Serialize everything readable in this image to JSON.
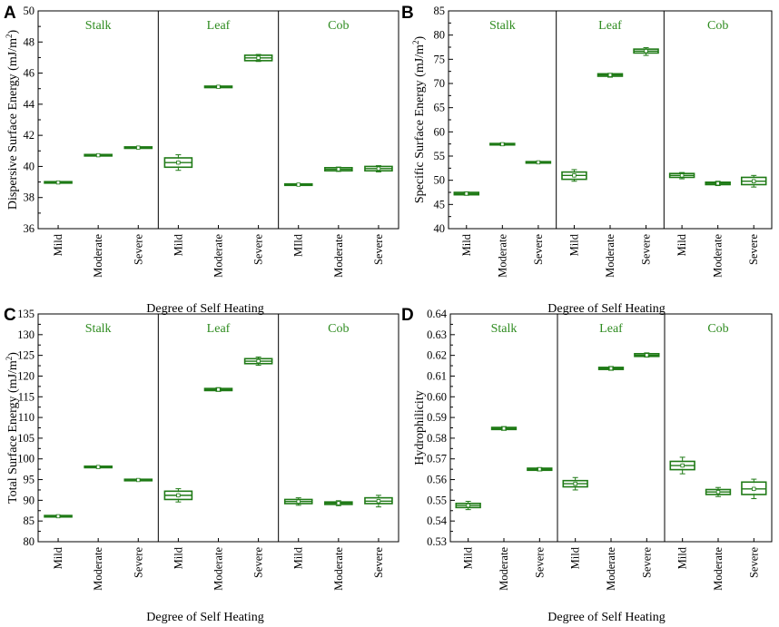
{
  "chart_data": [
    {
      "panel": "A",
      "type": "box",
      "ylabel": "Dispersive Surface Energy (mJ/m2)",
      "xlabel": "Degree of Self Heating",
      "ylim": [
        36,
        50
      ],
      "yticks": [
        36,
        38,
        40,
        42,
        44,
        46,
        48,
        50
      ],
      "groups": [
        "Stalk",
        "Leaf",
        "Cob"
      ],
      "categories": [
        "Mild",
        "Moderate",
        "Severe",
        "Mild",
        "Moderate",
        "Severe",
        "MIld",
        "Moderate",
        "Severe"
      ],
      "boxes": [
        {
          "q1": 38.95,
          "q3": 39.0,
          "mean": 38.97,
          "min": 38.93,
          "max": 39.02
        },
        {
          "q1": 40.7,
          "q3": 40.74,
          "mean": 40.72,
          "min": 40.68,
          "max": 40.76
        },
        {
          "q1": 41.19,
          "q3": 41.23,
          "mean": 41.21,
          "min": 41.17,
          "max": 41.25
        },
        {
          "q1": 39.95,
          "q3": 40.55,
          "mean": 40.25,
          "min": 39.75,
          "max": 40.75
        },
        {
          "q1": 45.08,
          "q3": 45.15,
          "mean": 45.12,
          "min": 45.05,
          "max": 45.18
        },
        {
          "q1": 46.8,
          "q3": 47.15,
          "mean": 46.98,
          "min": 46.75,
          "max": 47.2
        },
        {
          "q1": 38.8,
          "q3": 38.86,
          "mean": 38.83,
          "min": 38.78,
          "max": 38.88
        },
        {
          "q1": 39.72,
          "q3": 39.92,
          "mean": 39.82,
          "min": 39.68,
          "max": 39.96
        },
        {
          "q1": 39.72,
          "q3": 40.0,
          "mean": 39.86,
          "min": 39.65,
          "max": 40.05
        }
      ]
    },
    {
      "panel": "B",
      "type": "box",
      "ylabel": "Specific Surface Energy (mJ/m2)",
      "xlabel": "Degree of Self Heating",
      "ylim": [
        40,
        85
      ],
      "yticks": [
        40,
        45,
        50,
        55,
        60,
        65,
        70,
        75,
        80,
        85
      ],
      "groups": [
        "Stalk",
        "Leaf",
        "Cob"
      ],
      "categories": [
        "Mild",
        "Moderate",
        "Severe",
        "Mild",
        "Moderate",
        "Severe",
        "Mild",
        "Moderate",
        "Severe"
      ],
      "boxes": [
        {
          "q1": 47.0,
          "q3": 47.5,
          "mean": 47.25,
          "min": 46.9,
          "max": 47.6
        },
        {
          "q1": 57.3,
          "q3": 57.6,
          "mean": 57.45,
          "min": 57.2,
          "max": 57.7
        },
        {
          "q1": 53.6,
          "q3": 53.8,
          "mean": 53.7,
          "min": 53.5,
          "max": 53.9
        },
        {
          "q1": 50.2,
          "q3": 51.7,
          "mean": 51.0,
          "min": 49.8,
          "max": 52.2
        },
        {
          "q1": 71.5,
          "q3": 72.0,
          "mean": 71.75,
          "min": 71.3,
          "max": 72.1
        },
        {
          "q1": 76.3,
          "q3": 77.1,
          "mean": 76.7,
          "min": 75.8,
          "max": 77.4
        },
        {
          "q1": 50.6,
          "q3": 51.4,
          "mean": 51.0,
          "min": 50.3,
          "max": 51.6
        },
        {
          "q1": 49.1,
          "q3": 49.6,
          "mean": 49.35,
          "min": 48.9,
          "max": 49.8
        },
        {
          "q1": 49.1,
          "q3": 50.6,
          "mean": 49.8,
          "min": 48.6,
          "max": 51.0
        }
      ]
    },
    {
      "panel": "C",
      "type": "box",
      "ylabel": "Total Surface Energy (mJ/m2)",
      "xlabel": "Degree of Self Heating",
      "ylim": [
        80,
        135
      ],
      "yticks": [
        80,
        85,
        90,
        95,
        100,
        105,
        110,
        115,
        120,
        125,
        130,
        135
      ],
      "groups": [
        "Stalk",
        "Leaf",
        "Cob"
      ],
      "categories": [
        "Mild",
        "Moderate",
        "Severe",
        "Mild",
        "Moderate",
        "Severe",
        "Mild",
        "Moderate",
        "Severe"
      ],
      "boxes": [
        {
          "q1": 86.0,
          "q3": 86.3,
          "mean": 86.15,
          "min": 85.9,
          "max": 86.4
        },
        {
          "q1": 97.9,
          "q3": 98.2,
          "mean": 98.05,
          "min": 97.8,
          "max": 98.3
        },
        {
          "q1": 94.8,
          "q3": 95.0,
          "mean": 94.9,
          "min": 94.7,
          "max": 95.1
        },
        {
          "q1": 90.2,
          "q3": 92.2,
          "mean": 91.2,
          "min": 89.6,
          "max": 92.8
        },
        {
          "q1": 116.5,
          "q3": 117.0,
          "mean": 116.75,
          "min": 116.3,
          "max": 117.2
        },
        {
          "q1": 123.0,
          "q3": 124.2,
          "mean": 123.6,
          "min": 122.6,
          "max": 124.6
        },
        {
          "q1": 89.2,
          "q3": 90.2,
          "mean": 89.7,
          "min": 88.8,
          "max": 90.6
        },
        {
          "q1": 89.0,
          "q3": 89.6,
          "mean": 89.3,
          "min": 88.7,
          "max": 89.9
        },
        {
          "q1": 89.2,
          "q3": 90.6,
          "mean": 89.8,
          "min": 88.4,
          "max": 91.2
        }
      ]
    },
    {
      "panel": "D",
      "type": "box",
      "ylabel": "Hydrophilicity",
      "xlabel": "Degree of Self Heating",
      "ylim": [
        0.53,
        0.64
      ],
      "yticks": [
        0.53,
        0.54,
        0.55,
        0.56,
        0.57,
        0.58,
        0.59,
        0.6,
        0.61,
        0.62,
        0.63,
        0.64
      ],
      "groups": [
        "Stalk",
        "Leaf",
        "Cob"
      ],
      "categories": [
        "Mild",
        "Moderate",
        "Severe",
        "Mild",
        "Moderate",
        "Severe",
        "Mild",
        "Moderate",
        "Severe"
      ],
      "boxes": [
        {
          "q1": 0.5465,
          "q3": 0.5485,
          "mean": 0.5475,
          "min": 0.5455,
          "max": 0.5495
        },
        {
          "q1": 0.5842,
          "q3": 0.5852,
          "mean": 0.5847,
          "min": 0.5838,
          "max": 0.5856
        },
        {
          "q1": 0.5645,
          "q3": 0.5655,
          "mean": 0.565,
          "min": 0.5642,
          "max": 0.5658
        },
        {
          "q1": 0.5565,
          "q3": 0.5595,
          "mean": 0.558,
          "min": 0.555,
          "max": 0.561
        },
        {
          "q1": 0.6132,
          "q3": 0.6142,
          "mean": 0.6137,
          "min": 0.6128,
          "max": 0.6146
        },
        {
          "q1": 0.6195,
          "q3": 0.6208,
          "mean": 0.6201,
          "min": 0.6192,
          "max": 0.6212
        },
        {
          "q1": 0.5648,
          "q3": 0.5688,
          "mean": 0.5668,
          "min": 0.5628,
          "max": 0.5708
        },
        {
          "q1": 0.5528,
          "q3": 0.5552,
          "mean": 0.554,
          "min": 0.5518,
          "max": 0.5562
        },
        {
          "q1": 0.5528,
          "q3": 0.5588,
          "mean": 0.5555,
          "min": 0.5508,
          "max": 0.5602
        }
      ]
    }
  ],
  "colors": {
    "box": "#1f7a16",
    "group_label": "#2e8b1f",
    "axis": "#000000",
    "divider": "#000000"
  }
}
